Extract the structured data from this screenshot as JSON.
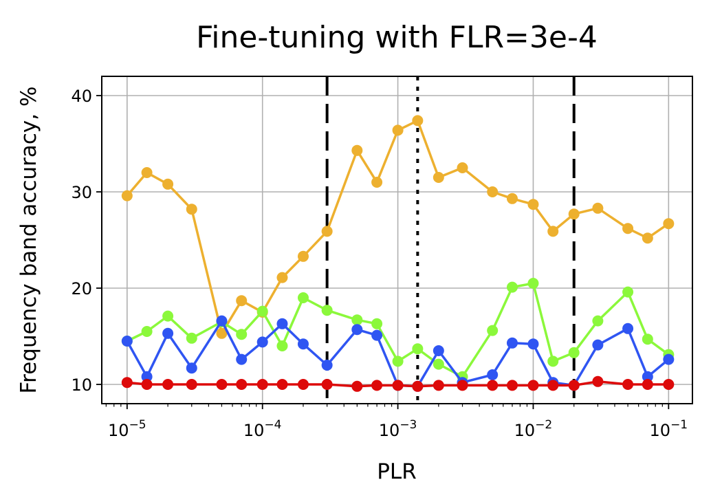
{
  "chart_data": {
    "type": "line",
    "title": "Fine-tuning with FLR=3e-4",
    "xlabel": "PLR",
    "ylabel": "Frequency band accuracy, %",
    "xscale": "log",
    "xlim": [
      6.5e-06,
      0.15
    ],
    "ylim": [
      8,
      42
    ],
    "grid": true,
    "x_ticks": [
      {
        "value": 1e-05,
        "base": "10",
        "exp": "−5"
      },
      {
        "value": 0.0001,
        "base": "10",
        "exp": "−4"
      },
      {
        "value": 0.001,
        "base": "10",
        "exp": "−3"
      },
      {
        "value": 0.01,
        "base": "10",
        "exp": "−2"
      },
      {
        "value": 0.1,
        "base": "10",
        "exp": "−1"
      }
    ],
    "y_ticks": [
      {
        "value": 10,
        "label": "10"
      },
      {
        "value": 20,
        "label": "20"
      },
      {
        "value": 30,
        "label": "30"
      },
      {
        "value": 40,
        "label": "40"
      }
    ],
    "x": [
      1e-05,
      1.4e-05,
      2e-05,
      3e-05,
      5e-05,
      7e-05,
      0.0001,
      0.00014,
      0.0002,
      0.0003,
      0.0005,
      0.0007,
      0.001,
      0.0014,
      0.002,
      0.003,
      0.005,
      0.007,
      0.01,
      0.014,
      0.02,
      0.03,
      0.05,
      0.07,
      0.1
    ],
    "series": [
      {
        "color": "#edb02f",
        "values": [
          29.6,
          32.0,
          30.8,
          28.2,
          15.3,
          18.7,
          17.5,
          21.1,
          23.3,
          25.9,
          34.3,
          31.0,
          36.4,
          37.4,
          31.5,
          32.5,
          30.0,
          29.3,
          28.7,
          25.9,
          27.7,
          28.3,
          26.2,
          25.2,
          26.7
        ]
      },
      {
        "color": "#8bf83b",
        "values": [
          14.5,
          15.5,
          17.1,
          14.8,
          16.5,
          15.2,
          17.6,
          14.0,
          19.0,
          17.7,
          16.7,
          16.3,
          12.4,
          13.7,
          12.1,
          10.8,
          15.6,
          20.1,
          20.5,
          12.4,
          13.3,
          16.6,
          19.6,
          14.7,
          13.1
        ]
      },
      {
        "color": "#2f55f2",
        "values": [
          14.5,
          10.8,
          15.3,
          11.7,
          16.6,
          12.6,
          14.4,
          16.3,
          14.2,
          12.0,
          15.7,
          15.1,
          9.9,
          9.8,
          13.5,
          10.2,
          11.0,
          14.3,
          14.2,
          10.2,
          9.9,
          14.1,
          15.8,
          10.8,
          12.6
        ]
      },
      {
        "color": "#dd0a0a",
        "values": [
          10.2,
          10.0,
          10.0,
          10.0,
          10.0,
          10.0,
          10.0,
          10.0,
          10.0,
          10.0,
          9.8,
          9.9,
          9.9,
          9.8,
          9.9,
          9.9,
          9.9,
          9.9,
          9.9,
          9.9,
          9.9,
          10.3,
          10.0,
          10.0,
          10.0
        ]
      }
    ],
    "reference_lines": [
      {
        "x": 0.0003,
        "style": "dashed",
        "color": "#000000"
      },
      {
        "x": 0.0014,
        "style": "dotted",
        "color": "#000000"
      },
      {
        "x": 0.02,
        "style": "dashed",
        "color": "#000000"
      }
    ]
  }
}
